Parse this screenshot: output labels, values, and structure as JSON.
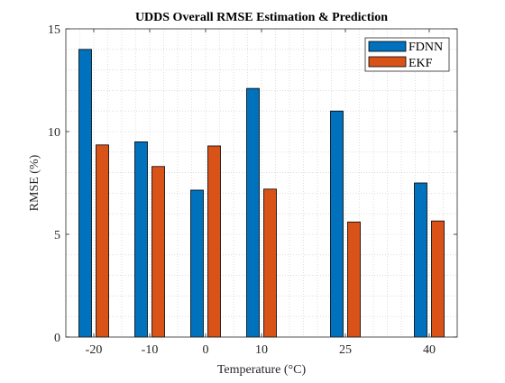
{
  "chart_data": {
    "type": "bar",
    "title": "UDDS Overall RMSE Estimation & Prediction",
    "xlabel": "Temperature (°C)",
    "ylabel": "RMSE (%)",
    "x": [
      -20,
      -10,
      0,
      10,
      25,
      40
    ],
    "x_tick_labels": [
      "-20",
      "-10",
      "0",
      "10",
      "25",
      "40"
    ],
    "xlim": [
      -25,
      45
    ],
    "ylim": [
      0,
      15
    ],
    "y_ticks": [
      0,
      5,
      10,
      15
    ],
    "y_tick_labels": [
      "0",
      "5",
      "10",
      "15"
    ],
    "grid": true,
    "grid_style": "dotted",
    "legend_position": "top-right",
    "series": [
      {
        "name": "FDNN",
        "color": "#0072BD",
        "values": [
          14.0,
          9.5,
          7.15,
          12.1,
          11.0,
          7.5
        ]
      },
      {
        "name": "EKF",
        "color": "#D95319",
        "values": [
          9.35,
          8.3,
          9.3,
          7.2,
          5.6,
          5.65
        ]
      }
    ]
  }
}
